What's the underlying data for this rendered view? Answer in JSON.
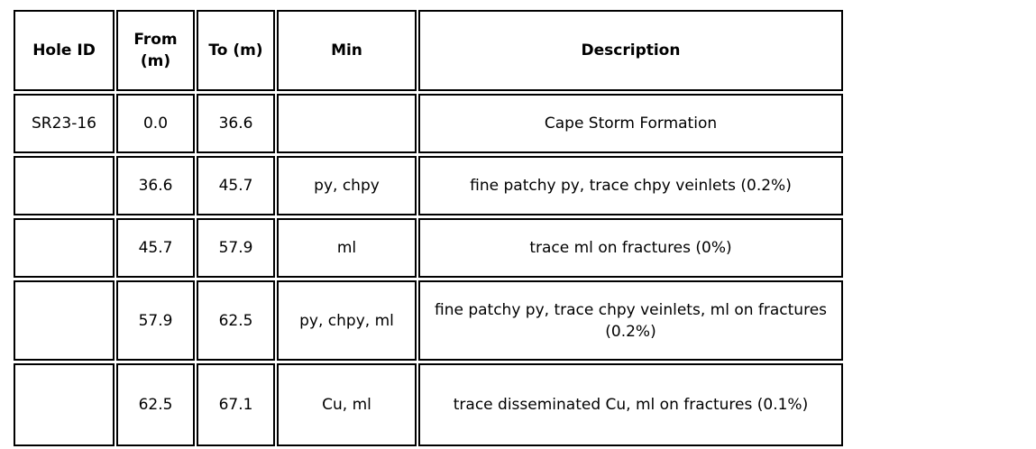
{
  "table": {
    "headers": [
      "Hole ID",
      "From (m)",
      "To (m)",
      "Min",
      "Description"
    ],
    "rows": [
      [
        "SR23-16",
        "0.0",
        "36.6",
        "",
        "Cape Storm Formation"
      ],
      [
        "",
        "36.6",
        "45.7",
        "py, chpy",
        "fine patchy py, trace chpy veinlets (0.2%)"
      ],
      [
        "",
        "45.7",
        "57.9",
        "ml",
        "trace ml on fractures (0%)"
      ],
      [
        "",
        "57.9",
        "62.5",
        "py, chpy, ml",
        "fine patchy py, trace chpy veinlets, ml on fractures (0.2%)"
      ],
      [
        "",
        "62.5",
        "67.1",
        "Cu, ml",
        "trace disseminated Cu, ml on fractures (0.1%)"
      ]
    ]
  }
}
